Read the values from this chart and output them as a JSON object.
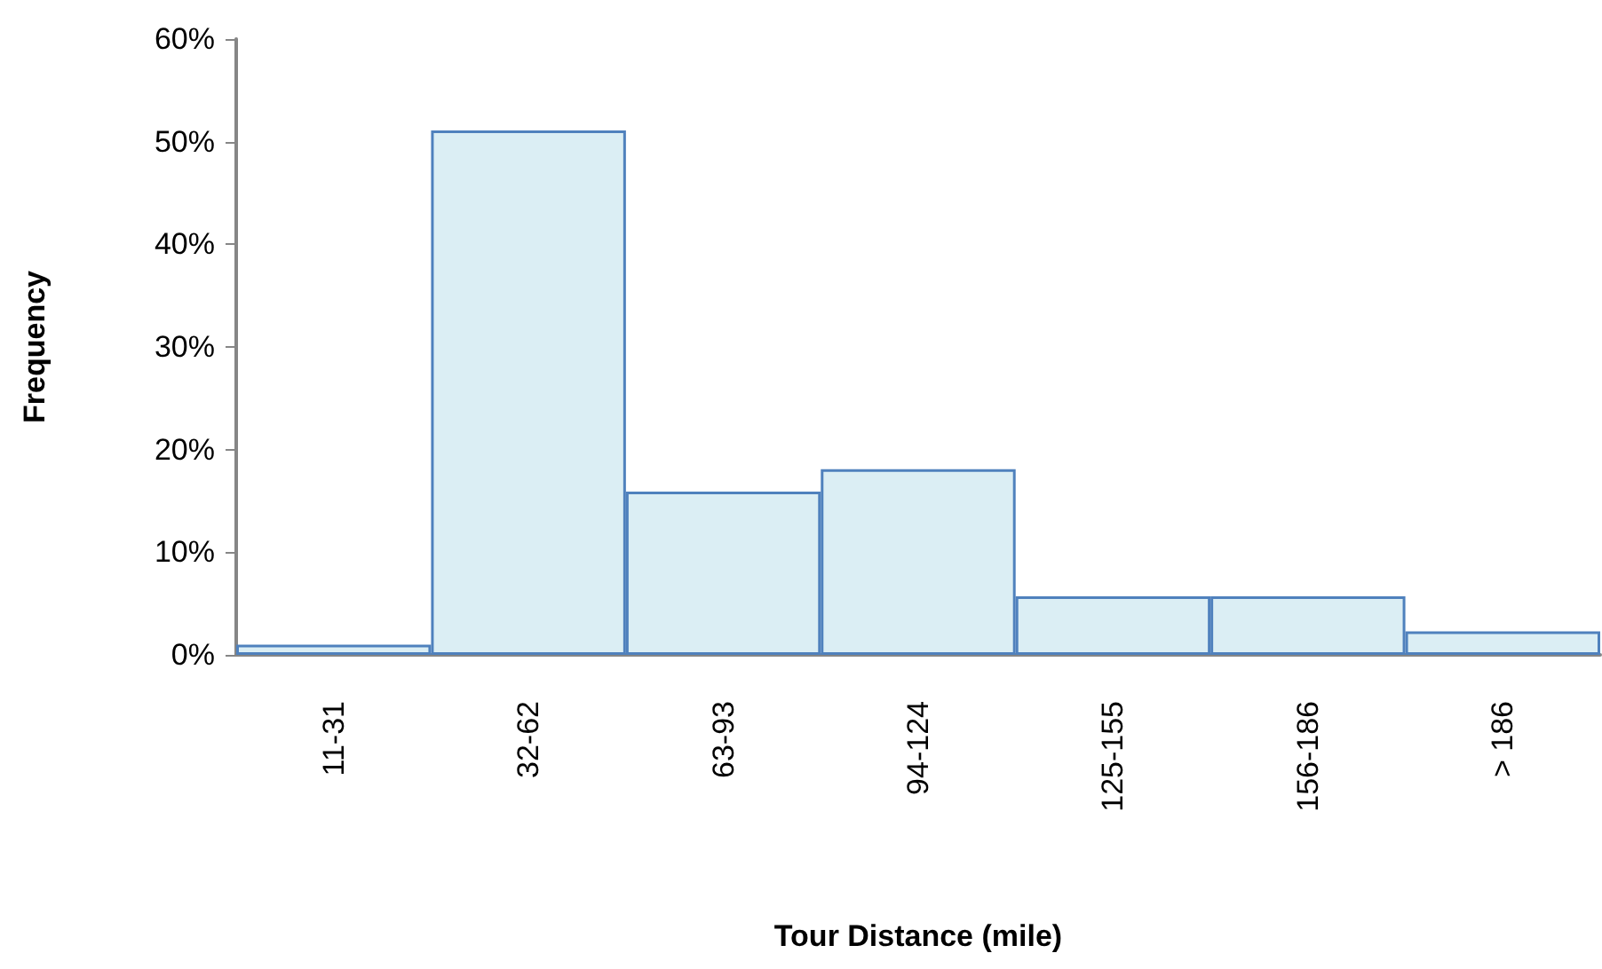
{
  "chart_data": {
    "type": "bar",
    "xlabel": "Tour Distance (mile)",
    "ylabel": "Frequency",
    "categories": [
      "11-31",
      "32-62",
      "63-93",
      "94-124",
      "125-155",
      "156-186",
      "> 186"
    ],
    "series": [
      {
        "color": "#dbeef4",
        "values": [
          1.0,
          51.1,
          15.9,
          18.1,
          5.7,
          5.7,
          2.3
        ]
      }
    ],
    "ylim": [
      0,
      60
    ],
    "yticks": [
      {
        "value": 0,
        "label": "0%"
      },
      {
        "value": 10,
        "label": "10%"
      },
      {
        "value": 20,
        "label": "20%"
      },
      {
        "value": 30,
        "label": "30%"
      },
      {
        "value": 40,
        "label": "40%"
      },
      {
        "value": 50,
        "label": "50%"
      },
      {
        "value": 60,
        "label": "60%"
      }
    ],
    "grid": false
  }
}
